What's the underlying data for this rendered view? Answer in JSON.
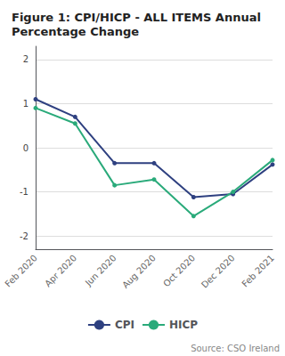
{
  "chart_data": {
    "type": "line",
    "title": "Figure 1: CPI/HICP - ALL ITEMS Annual\nPercentage Change",
    "source": "Source: CSO Ireland",
    "categories": [
      "Feb 2020",
      "Apr 2020",
      "Jun 2020",
      "Aug 2020",
      "Oct 2020",
      "Dec 2020",
      "Feb 2021"
    ],
    "series": [
      {
        "name": "CPI",
        "color": "#2e4080",
        "values": [
          1.1,
          0.7,
          -0.35,
          -0.35,
          -1.12,
          -1.05,
          -0.38
        ]
      },
      {
        "name": "HICP",
        "color": "#2aaa7a",
        "values": [
          0.9,
          0.55,
          -0.85,
          -0.72,
          -1.55,
          -1.0,
          -0.28
        ]
      }
    ],
    "ylim": [
      -2.3,
      2.3
    ],
    "yticks": [
      -2,
      -1,
      0,
      1,
      2
    ],
    "grid": true,
    "legend": "bottom",
    "marker": "circle"
  }
}
